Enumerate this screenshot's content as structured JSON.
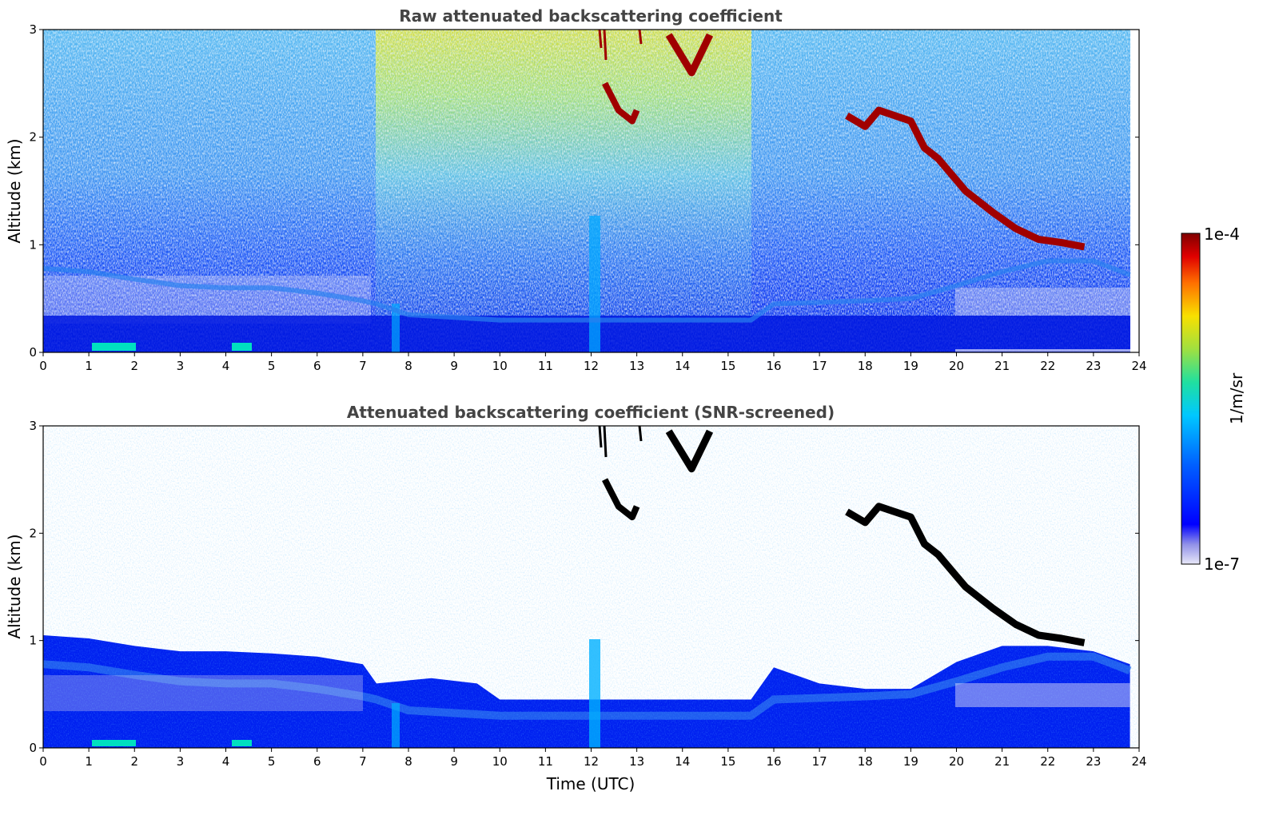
{
  "chart_data": [
    {
      "type": "heatmap",
      "title": "Raw attenuated backscattering coefficient",
      "xlabel": "",
      "ylabel": "Altitude (km)",
      "xlim": [
        0,
        24
      ],
      "ylim": [
        0,
        3
      ],
      "x_ticks": [
        "0",
        "1",
        "2",
        "3",
        "4",
        "5",
        "6",
        "7",
        "8",
        "9",
        "10",
        "11",
        "12",
        "13",
        "14",
        "15",
        "16",
        "17",
        "18",
        "19",
        "20",
        "21",
        "22",
        "23",
        "24"
      ],
      "y_ticks": [
        "0",
        "1",
        "2",
        "3"
      ],
      "data_extent_x": [
        0,
        23.8
      ],
      "description_series": [
        {
          "feature": "aerosol_layer_top",
          "x": [
            0,
            1,
            2,
            3,
            4,
            5,
            6,
            7,
            7.3,
            8,
            10,
            12,
            14,
            15.5,
            16,
            18,
            19,
            20,
            21,
            22,
            23,
            23.8
          ],
          "y": [
            0.78,
            0.75,
            0.68,
            0.62,
            0.6,
            0.6,
            0.55,
            0.48,
            0.45,
            0.35,
            0.3,
            0.3,
            0.3,
            0.3,
            0.45,
            0.48,
            0.5,
            0.62,
            0.75,
            0.85,
            0.85,
            0.72
          ]
        },
        {
          "feature": "cloud_descending_layer",
          "x": [
            17.6,
            18.0,
            18.3,
            19.0,
            19.3,
            19.6,
            20.0,
            20.2,
            20.8,
            21.3,
            21.8,
            22.3,
            22.8
          ],
          "y": [
            2.2,
            2.1,
            2.25,
            2.15,
            1.9,
            1.8,
            1.6,
            1.5,
            1.3,
            1.15,
            1.05,
            1.02,
            0.98
          ]
        },
        {
          "feature": "cloud_upper",
          "x": [
            12.3,
            12.6,
            12.9,
            13.0,
            13.7,
            14.2,
            14.6
          ],
          "y": [
            2.5,
            2.25,
            2.15,
            2.25,
            2.95,
            2.6,
            2.95
          ]
        }
      ]
    },
    {
      "type": "heatmap",
      "title": "Attenuated backscattering coefficient (SNR-screened)",
      "xlabel": "Time (UTC)",
      "ylabel": "Altitude (km)",
      "xlim": [
        0,
        24
      ],
      "ylim": [
        0,
        3
      ],
      "x_ticks": [
        "0",
        "1",
        "2",
        "3",
        "4",
        "5",
        "6",
        "7",
        "8",
        "9",
        "10",
        "11",
        "12",
        "13",
        "14",
        "15",
        "16",
        "17",
        "18",
        "19",
        "20",
        "21",
        "22",
        "23",
        "24"
      ],
      "y_ticks": [
        "0",
        "1",
        "2",
        "3"
      ],
      "data_extent_x": [
        0,
        23.8
      ],
      "description_series": [
        {
          "feature": "screened_aerosol_top",
          "x": [
            0,
            1,
            2,
            3,
            4,
            5,
            6,
            7,
            7.3,
            8.5,
            9.5,
            10,
            11,
            12,
            13,
            15.5,
            16,
            17,
            18,
            19,
            20,
            21,
            22,
            23,
            23.8
          ],
          "y": [
            1.05,
            1.02,
            0.95,
            0.9,
            0.9,
            0.88,
            0.85,
            0.78,
            0.6,
            0.65,
            0.6,
            0.45,
            0.45,
            0.45,
            0.45,
            0.45,
            0.75,
            0.6,
            0.55,
            0.55,
            0.8,
            0.95,
            0.95,
            0.9,
            0.78
          ]
        }
      ]
    }
  ],
  "colorbar": {
    "max_label": "1e-4",
    "min_label": "1e-7",
    "units_label": "1/m/sr",
    "colors": [
      "#e6e6f5",
      "#b3b3e8",
      "#8080f0",
      "#3333ff",
      "#0000ff",
      "#0020ff",
      "#0060ff",
      "#00a0ff",
      "#00d0ff",
      "#00e0c0",
      "#20e080",
      "#80e040",
      "#c0e000",
      "#f0e000",
      "#ffc000",
      "#ff8000",
      "#ff4000",
      "#e00000",
      "#a00000",
      "#800000"
    ]
  },
  "panel1": {
    "title": "Raw attenuated backscattering coefficient",
    "ylabel": "Altitude (km)"
  },
  "panel2": {
    "title": "Attenuated backscattering coefficient (SNR-screened)",
    "ylabel": "Altitude (km)",
    "xlabel": "Time (UTC)"
  }
}
